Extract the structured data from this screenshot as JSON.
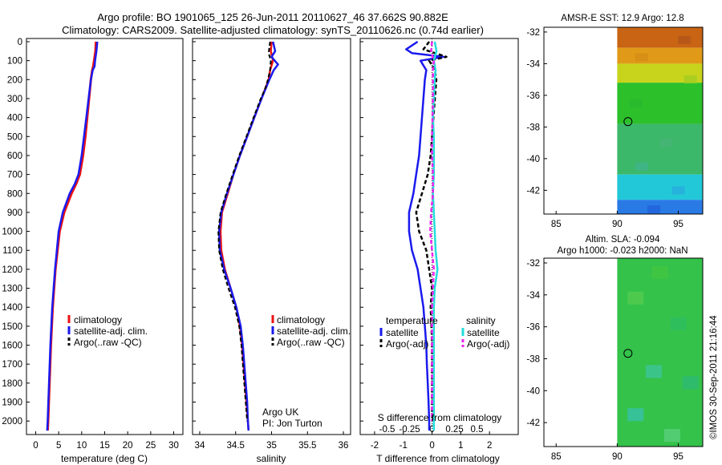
{
  "header": {
    "title_line1": "Argo profile: BO 1901065_125 26-Jun-2011 20110627_46 37.662S 90.882E",
    "title_line2": "Climatology: CARS2009. Satellite-adjusted climatology: synTS_20110626.nc (0.74d earlier)"
  },
  "colors": {
    "climatology": "#ee1111",
    "satellite_adj": "#1a1aee",
    "argo": "#000000",
    "sal_satellite": "#22dddd",
    "sal_argo": "#ee22ee"
  },
  "chart_data": [
    {
      "id": "temperature",
      "type": "line",
      "xlabel": "temperature (deg C)",
      "ylabel": "",
      "xlim": [
        -2,
        32
      ],
      "ylim": [
        2050,
        0
      ],
      "xticks": [
        0,
        5,
        10,
        15,
        20,
        25,
        30
      ],
      "yticks": [
        0,
        100,
        200,
        300,
        400,
        500,
        600,
        700,
        800,
        900,
        1000,
        1100,
        1200,
        1300,
        1400,
        1500,
        1600,
        1700,
        1800,
        1900,
        2000
      ],
      "legend": [
        "climatology",
        "satellite-adj. clim.",
        "Argo(..raw -QC)"
      ],
      "series": [
        {
          "name": "climatology",
          "depth": [
            0,
            50,
            100,
            130,
            150,
            200,
            300,
            400,
            500,
            600,
            700,
            750,
            800,
            900,
            1000,
            1200,
            1400,
            1600,
            1800,
            2000,
            2050
          ],
          "values": [
            13.1,
            13.0,
            12.7,
            12.5,
            12.3,
            12.0,
            11.6,
            11.2,
            10.8,
            10.3,
            9.6,
            8.8,
            7.8,
            6.2,
            5.2,
            4.3,
            3.7,
            3.3,
            3.0,
            2.7,
            2.6
          ]
        },
        {
          "name": "satellite-adj. clim.",
          "depth": [
            0,
            50,
            100,
            130,
            150,
            200,
            300,
            400,
            500,
            600,
            700,
            750,
            800,
            900,
            1000,
            1200,
            1400,
            1600,
            1800,
            2000,
            2050
          ],
          "values": [
            13.4,
            13.2,
            12.9,
            12.8,
            12.4,
            12.0,
            11.5,
            11.0,
            10.5,
            10.0,
            9.3,
            8.5,
            7.4,
            5.9,
            5.0,
            4.2,
            3.6,
            3.2,
            2.9,
            2.6,
            2.5
          ]
        }
      ]
    },
    {
      "id": "salinity",
      "type": "line",
      "xlabel": "salinity",
      "xlim": [
        33.9,
        36.1
      ],
      "ylim": [
        2050,
        0
      ],
      "xticks": [
        34,
        34.5,
        35,
        35.5,
        36
      ],
      "legend": [
        "climatology",
        "satellite-adj. clim.",
        "Argo(..raw -QC)"
      ],
      "series": [
        {
          "name": "climatology",
          "depth": [
            0,
            50,
            100,
            150,
            200,
            300,
            400,
            500,
            600,
            700,
            800,
            900,
            1000,
            1100,
            1200,
            1300,
            1400,
            1500,
            1600,
            1700,
            1800,
            1900,
            2000,
            2050
          ],
          "values": [
            35.0,
            34.99,
            35.02,
            34.98,
            34.96,
            34.86,
            34.76,
            34.66,
            34.56,
            34.47,
            34.39,
            34.31,
            34.29,
            34.3,
            34.35,
            34.43,
            34.51,
            34.56,
            34.59,
            34.61,
            34.63,
            34.65,
            34.67,
            34.68
          ]
        },
        {
          "name": "satellite-adj. clim.",
          "depth": [
            0,
            50,
            80,
            120,
            150,
            200,
            300,
            400,
            500,
            600,
            700,
            800,
            900,
            1000,
            1100,
            1200,
            1300,
            1400,
            1500,
            1600,
            1700,
            1800,
            1900,
            2000,
            2050
          ],
          "values": [
            35.02,
            35.05,
            35.0,
            35.09,
            35.03,
            34.97,
            34.86,
            34.76,
            34.66,
            34.56,
            34.47,
            34.38,
            34.3,
            34.27,
            34.28,
            34.34,
            34.43,
            34.51,
            34.57,
            34.6,
            34.62,
            34.64,
            34.66,
            34.67,
            34.68
          ]
        },
        {
          "name": "Argo(..raw -QC)",
          "depth": [
            0,
            30,
            60,
            100,
            150,
            200,
            250,
            300,
            400,
            500,
            600,
            700,
            800,
            900,
            1000,
            1100,
            1200,
            1300,
            1400,
            1500,
            1600,
            1700,
            1800,
            1900,
            2000
          ],
          "values": [
            34.98,
            34.97,
            34.96,
            34.99,
            34.98,
            34.95,
            34.91,
            34.85,
            34.75,
            34.65,
            34.55,
            34.46,
            34.37,
            34.29,
            34.26,
            34.27,
            34.32,
            34.4,
            34.49,
            34.55,
            34.58,
            34.6,
            34.62,
            34.64,
            34.66
          ]
        }
      ],
      "annotation_line1": "Argo UK",
      "annotation_line2": "PI: Jon Turton"
    },
    {
      "id": "difference",
      "type": "line",
      "xlabel": "T difference from climatology",
      "xlabel_top": "S difference from climatology",
      "xlim": [
        -2.5,
        3
      ],
      "ylim": [
        2050,
        0
      ],
      "xticks": [
        -2,
        -1,
        0,
        1,
        2
      ],
      "xticks_salinity": [
        -0.5,
        -0.25,
        0,
        0.25,
        0.5
      ],
      "legend_temperature_title": "temperature",
      "legend_salinity_title": "salinity",
      "legend_temperature": [
        "satellite",
        "Argo(-adj)"
      ],
      "legend_salinity": [
        "satellite",
        "Argo(-adj)"
      ],
      "series": [
        {
          "name": "temperature satellite",
          "depth": [
            0,
            40,
            60,
            80,
            100,
            150,
            200,
            300,
            400,
            500,
            600,
            700,
            800,
            900,
            1000,
            1100,
            1200,
            1300,
            1400,
            1500,
            1600,
            1700,
            1800,
            1900,
            2000,
            2050
          ],
          "values": [
            -0.5,
            -0.9,
            -0.7,
            0.4,
            -0.4,
            -0.2,
            -0.25,
            -0.3,
            -0.35,
            -0.4,
            -0.45,
            -0.55,
            -0.65,
            -0.8,
            -0.8,
            -0.7,
            -0.5,
            -0.4,
            -0.3,
            -0.25,
            -0.2,
            -0.18,
            -0.15,
            -0.12,
            -0.1,
            -0.1
          ]
        },
        {
          "name": "temperature Argo(-adj)",
          "depth": [
            0,
            40,
            80,
            100,
            150,
            200,
            300,
            400,
            500,
            600,
            700,
            800,
            900,
            1000,
            1100,
            1200,
            1300,
            1400,
            1500,
            1600,
            1700,
            1800,
            1900,
            2000
          ],
          "values": [
            -0.1,
            -0.3,
            0.5,
            -0.1,
            0.1,
            0.15,
            0.1,
            0.05,
            0.0,
            -0.05,
            -0.15,
            -0.35,
            -0.55,
            -0.45,
            -0.2,
            -0.1,
            0.0,
            -0.05,
            -0.02,
            0.0,
            0.0,
            0.0,
            0.0,
            0.0
          ]
        },
        {
          "name": "salinity satellite",
          "depth": [
            0,
            50,
            100,
            150,
            200,
            300,
            400,
            500,
            600,
            700,
            800,
            900,
            1000,
            1100,
            1200,
            1300,
            1400,
            1500,
            1600,
            1700,
            1800,
            1900,
            2000,
            2050
          ],
          "values": [
            0.03,
            0.05,
            0.02,
            0.04,
            0.03,
            0.02,
            0.01,
            0.02,
            0.02,
            0.02,
            0.01,
            0.02,
            0.03,
            0.04,
            0.06,
            0.03,
            0.02,
            0.02,
            0.02,
            0.02,
            0.02,
            0.02,
            0.02,
            0.02
          ]
        },
        {
          "name": "salinity Argo(-adj)",
          "depth": [
            0,
            50,
            100,
            150,
            200,
            300,
            400,
            500,
            600,
            700,
            800,
            900,
            1000,
            1100,
            1200,
            1300,
            1400,
            1500,
            1600,
            1700,
            1800,
            1900,
            2000
          ],
          "values": [
            0.0,
            -0.01,
            0.02,
            0.01,
            0.01,
            0.01,
            0.005,
            0.0,
            0.0,
            0.01,
            0.01,
            -0.01,
            -0.02,
            0.0,
            0.02,
            0.01,
            0.0,
            0.0,
            0.0,
            0.0,
            0.0,
            0.0,
            0.0
          ]
        }
      ]
    },
    {
      "id": "sst_map",
      "type": "heatmap",
      "title": "AMSR-E SST: 12.9 Argo: 12.8",
      "xlim": [
        84,
        97
      ],
      "ylim": [
        -43.5,
        -31.7
      ],
      "xticks": [
        85,
        90,
        95
      ],
      "yticks": [
        -32,
        -34,
        -36,
        -38,
        -40,
        -42
      ],
      "data_x_min": 90,
      "marker": {
        "lon": 90.88,
        "lat": -37.66
      },
      "bands": [
        {
          "lat_top": -31.7,
          "lat_bottom": -33.0,
          "color": "#c86414"
        },
        {
          "lat_top": -33.0,
          "lat_bottom": -34.0,
          "color": "#e09a18"
        },
        {
          "lat_top": -34.0,
          "lat_bottom": -35.2,
          "color": "#c8d41c"
        },
        {
          "lat_top": -35.2,
          "lat_bottom": -37.8,
          "color": "#2cc02a"
        },
        {
          "lat_top": -37.8,
          "lat_bottom": -41.0,
          "color": "#3cb86a"
        },
        {
          "lat_top": -41.0,
          "lat_bottom": -42.6,
          "color": "#22c8d8"
        },
        {
          "lat_top": -42.6,
          "lat_bottom": -43.5,
          "color": "#2a7ae6"
        }
      ]
    },
    {
      "id": "sla_map",
      "type": "heatmap",
      "title_line1": "Altim. SLA: -0.094",
      "title_line2": "Argo h1000: -0.023 h2000: NaN",
      "xlim": [
        84,
        97
      ],
      "ylim": [
        -43.5,
        -31.7
      ],
      "xticks": [
        85,
        90,
        95
      ],
      "yticks": [
        -32,
        -34,
        -36,
        -38,
        -40,
        -42
      ],
      "data_x_min": 90,
      "base_color": "#34c24a",
      "marker": {
        "lon": 90.88,
        "lat": -37.66
      }
    }
  ],
  "footer": {
    "stamp": "©IMOS 30-Sep-2011 21:16:44"
  }
}
